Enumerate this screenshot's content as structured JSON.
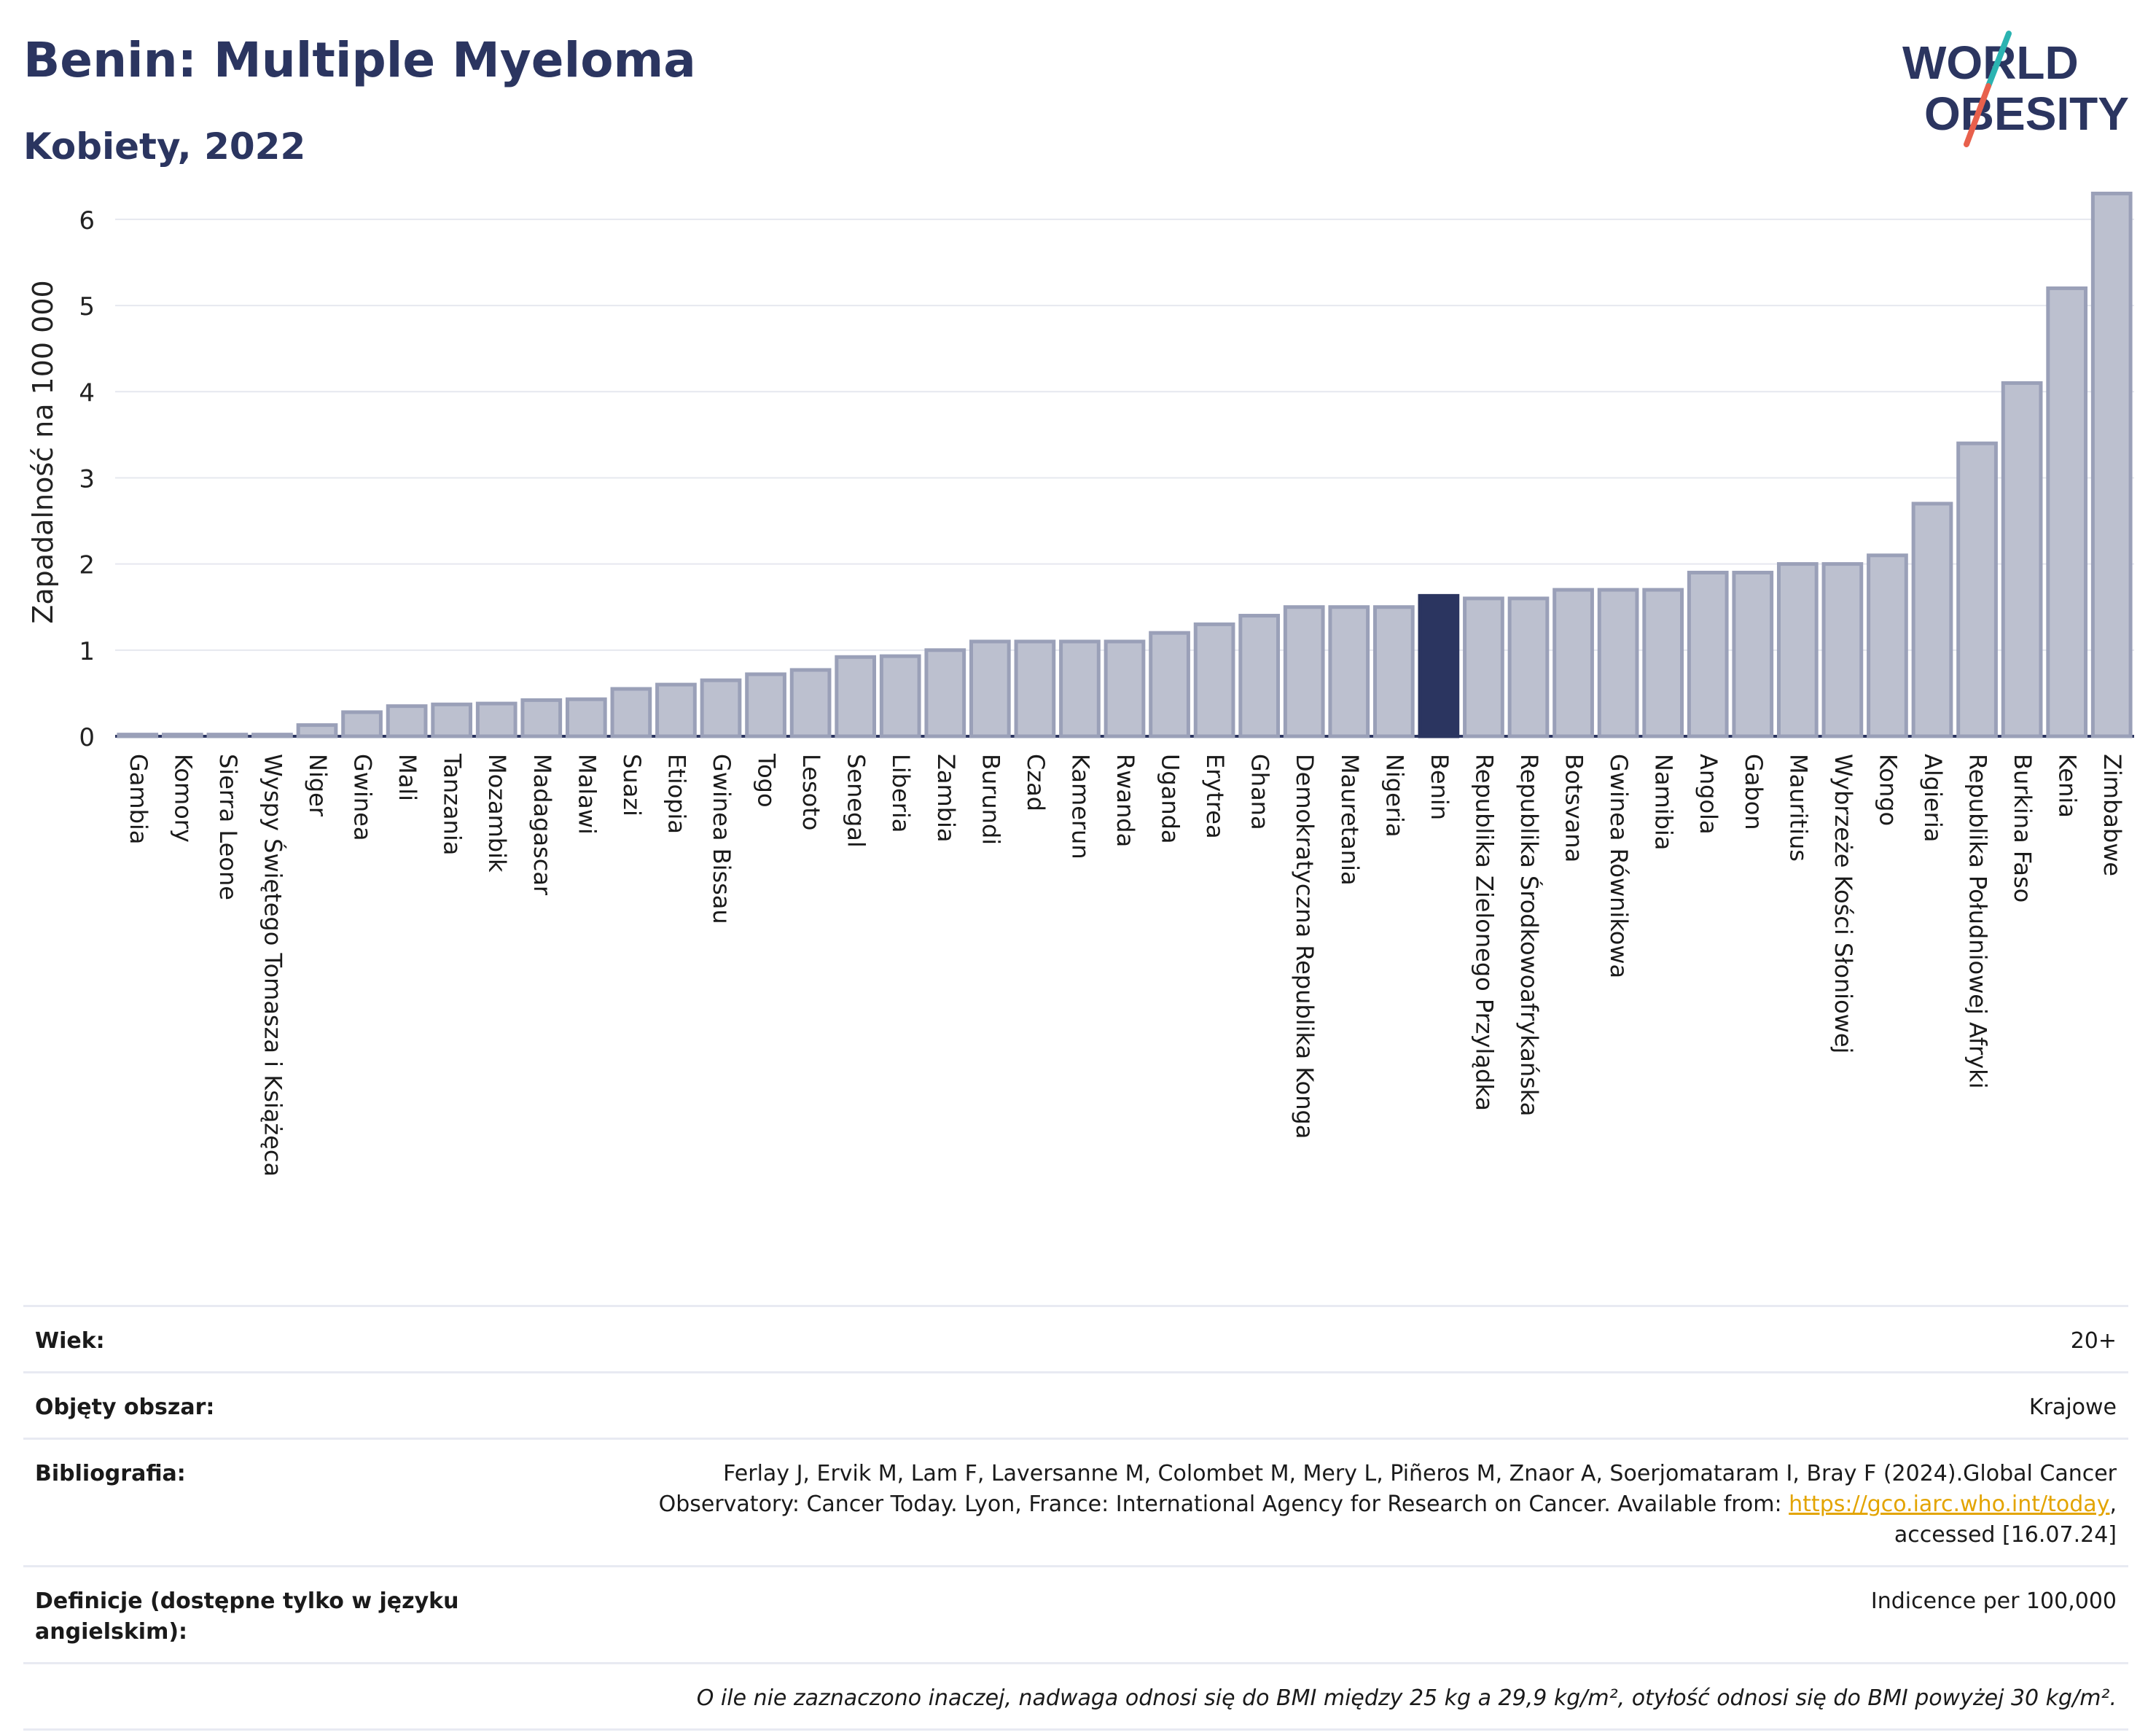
{
  "header": {
    "title": "Benin: Multiple Myeloma",
    "subtitle": "Kobiety, 2022",
    "logo_line1": "WORLD",
    "logo_line2": "OBESITY"
  },
  "chart_data": {
    "type": "bar",
    "ylabel": "Zapadalność na 100 000",
    "ylim": [
      0,
      6.6
    ],
    "yticks": [
      0,
      1,
      2,
      3,
      4,
      5,
      6
    ],
    "grid": true,
    "highlight": "Benin",
    "colors": {
      "bar": "#bcc0cf",
      "bar_edge": "#9aa0b8",
      "highlight": "#2b3560"
    },
    "categories": [
      "Gambia",
      "Komory",
      "Sierra Leone",
      "Wyspy Świętego Tomasza i Książęca",
      "Niger",
      "Gwinea",
      "Mali",
      "Tanzania",
      "Mozambik",
      "Madagascar",
      "Malawi",
      "Suazi",
      "Etiopia",
      "Gwinea Bissau",
      "Togo",
      "Lesoto",
      "Senegal",
      "Liberia",
      "Zambia",
      "Burundi",
      "Czad",
      "Kamerun",
      "Rwanda",
      "Uganda",
      "Erytrea",
      "Ghana",
      "Demokratyczna Republika Konga",
      "Mauretania",
      "Nigeria",
      "Benin",
      "Republika Zielonego Przylądka",
      "Republika Środkowoafrykańska",
      "Botsvana",
      "Gwinea Równikowa",
      "Namibia",
      "Angola",
      "Gabon",
      "Mauritius",
      "Wybrzeże Kości Słoniowej",
      "Kongo",
      "Algieria",
      "Republika Południowej Afryki",
      "Burkina Faso",
      "Kenia",
      "Zimbabwe"
    ],
    "values": [
      0.02,
      0.02,
      0.02,
      0.02,
      0.13,
      0.28,
      0.35,
      0.37,
      0.38,
      0.42,
      0.43,
      0.55,
      0.6,
      0.65,
      0.72,
      0.77,
      0.92,
      0.93,
      1.0,
      1.1,
      1.1,
      1.1,
      1.1,
      1.2,
      1.3,
      1.4,
      1.5,
      1.5,
      1.5,
      1.63,
      1.6,
      1.6,
      1.7,
      1.7,
      1.7,
      1.9,
      1.9,
      2.0,
      2.0,
      2.1,
      2.7,
      3.4,
      4.1,
      5.2,
      6.3
    ]
  },
  "meta": {
    "age_label": "Wiek:",
    "age_value": "20+",
    "coverage_label": "Objęty obszar:",
    "coverage_value": "Krajowe",
    "bib_label": "Bibliografia:",
    "bib_text_1": "Ferlay J, Ervik M, Lam F, Laversanne M, Colombet M, Mery L, Piñeros M, Znaor A, Soerjomataram I, Bray F (2024).Global Cancer",
    "bib_text_2": "Observatory: Cancer Today. Lyon, France: International Agency for Research on Cancer. Available from: ",
    "bib_link": "https://gco.iarc.who.int/today",
    "bib_text_3": ",",
    "bib_text_4": "accessed [16.07.24]",
    "def_label": "Definicje (dostępne tylko w języku angielskim):",
    "def_value": "Indicence per 100,000",
    "note": "O ile nie zaznaczono inaczej, nadwaga odnosi się do BMI między 25 kg a 29,9 kg/m², otyłość odnosi się do BMI powyżej 30 kg/m²."
  }
}
